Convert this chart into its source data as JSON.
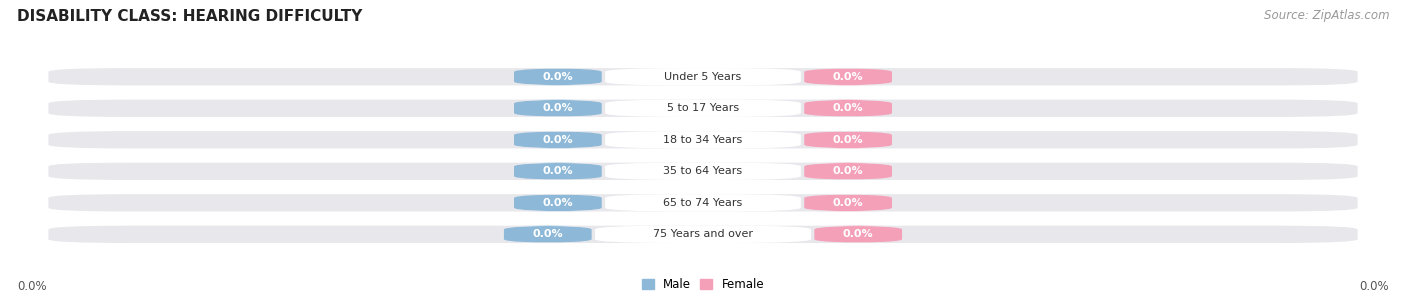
{
  "title": "DISABILITY CLASS: HEARING DIFFICULTY",
  "source": "Source: ZipAtlas.com",
  "categories": [
    "Under 5 Years",
    "5 to 17 Years",
    "18 to 34 Years",
    "35 to 64 Years",
    "65 to 74 Years",
    "75 Years and over"
  ],
  "male_values": [
    0.0,
    0.0,
    0.0,
    0.0,
    0.0,
    0.0
  ],
  "female_values": [
    0.0,
    0.0,
    0.0,
    0.0,
    0.0,
    0.0
  ],
  "male_color": "#8db8d8",
  "female_color": "#f4a0b8",
  "bar_bg_color": "#e8e8ec",
  "row_bg_color": "#f0f0f4",
  "male_label": "Male",
  "female_label": "Female",
  "x_tick_label_left": "0.0%",
  "x_tick_label_right": "0.0%",
  "background_color": "#ffffff",
  "title_fontsize": 11,
  "source_fontsize": 8.5
}
